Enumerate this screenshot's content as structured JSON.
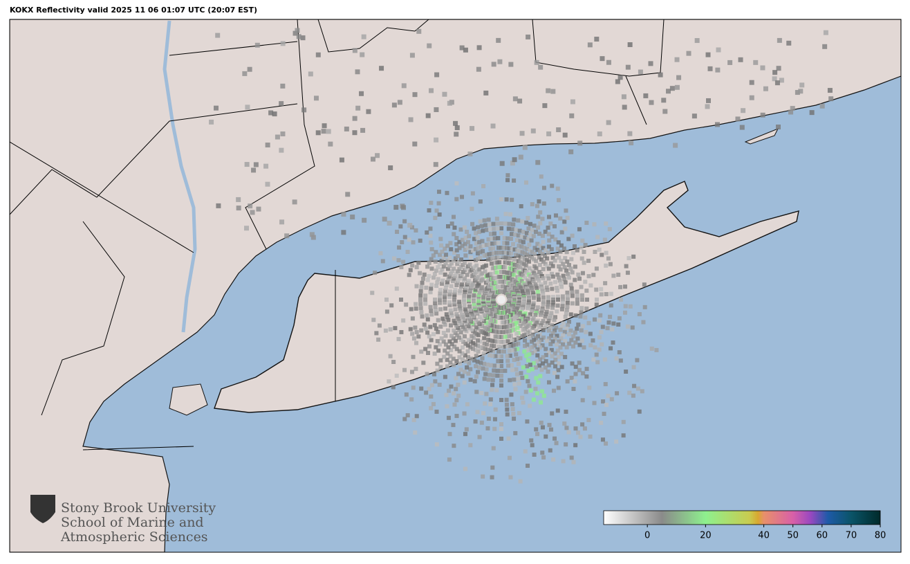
{
  "header": {
    "title": "KOKX Reflectivity valid 2025 11 06 01:07 UTC (20:07 EST)"
  },
  "logo": {
    "lines": [
      "Stony Brook University",
      "School of Marine and",
      "Atmospheric Sciences"
    ]
  },
  "colorbar": {
    "range": [
      -15,
      80
    ],
    "ticks": [
      0,
      20,
      40,
      50,
      60,
      70,
      80
    ],
    "stops": [
      {
        "value": -15,
        "color": "#ffffff"
      },
      {
        "value": 5,
        "color": "#8a8a8a"
      },
      {
        "value": 20,
        "color": "#8ef08e"
      },
      {
        "value": 35,
        "color": "#c8cc50"
      },
      {
        "value": 38,
        "color": "#d8a830"
      },
      {
        "value": 40,
        "color": "#e8906a"
      },
      {
        "value": 50,
        "color": "#d860a8"
      },
      {
        "value": 56,
        "color": "#9a48c0"
      },
      {
        "value": 62,
        "color": "#1e5aa8"
      },
      {
        "value": 70,
        "color": "#0a5468"
      },
      {
        "value": 80,
        "color": "#002a2a"
      }
    ]
  }
}
